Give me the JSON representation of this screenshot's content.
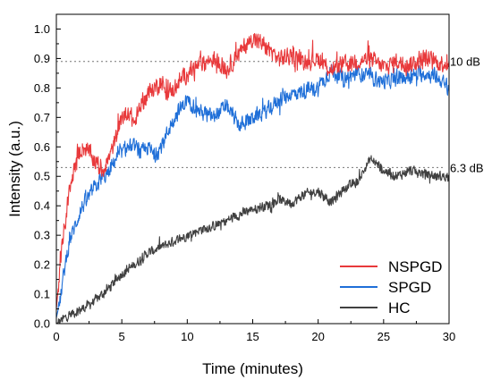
{
  "chart_data": {
    "type": "line",
    "title": "",
    "xlabel": "Time (minutes)",
    "ylabel": "Intensity (a.u.)",
    "xlim": [
      0,
      30
    ],
    "ylim": [
      0,
      1.05
    ],
    "x_ticks": [
      "0",
      "5",
      "10",
      "15",
      "20",
      "25",
      "30"
    ],
    "y_ticks": [
      "0.0",
      "0.1",
      "0.2",
      "0.3",
      "0.4",
      "0.5",
      "0.6",
      "0.7",
      "0.8",
      "0.9",
      "1.0"
    ],
    "grid": false,
    "legend_position": "bottom-right",
    "series": [
      {
        "name": "NSPGD",
        "color": "#e8393b",
        "noise": 0.025,
        "x": [
          0,
          0.3,
          0.6,
          1,
          1.5,
          2,
          2.5,
          3,
          3.5,
          4,
          4.5,
          5,
          5.5,
          6,
          6.5,
          7,
          7.5,
          8,
          8.5,
          9,
          10,
          11,
          12,
          13,
          14,
          15,
          16,
          17,
          18,
          19,
          20,
          21,
          22,
          23,
          24,
          25,
          26,
          27,
          28,
          29,
          30
        ],
        "y": [
          0.05,
          0.2,
          0.32,
          0.45,
          0.55,
          0.6,
          0.58,
          0.55,
          0.52,
          0.56,
          0.62,
          0.7,
          0.72,
          0.68,
          0.75,
          0.78,
          0.8,
          0.82,
          0.78,
          0.8,
          0.85,
          0.88,
          0.9,
          0.86,
          0.92,
          0.97,
          0.94,
          0.9,
          0.91,
          0.89,
          0.9,
          0.86,
          0.88,
          0.89,
          0.9,
          0.87,
          0.89,
          0.88,
          0.9,
          0.89,
          0.88
        ]
      },
      {
        "name": "SPGD",
        "color": "#1f6fd8",
        "noise": 0.022,
        "x": [
          0,
          0.3,
          0.6,
          1,
          1.5,
          2,
          2.5,
          3,
          3.5,
          4,
          4.5,
          5,
          5.5,
          6,
          6.5,
          7,
          7.5,
          8,
          8.5,
          9,
          10,
          11,
          12,
          13,
          14,
          15,
          16,
          17,
          18,
          19,
          20,
          21,
          22,
          23,
          24,
          25,
          26,
          27,
          28,
          29,
          30
        ],
        "y": [
          0.02,
          0.08,
          0.18,
          0.28,
          0.34,
          0.4,
          0.43,
          0.47,
          0.49,
          0.51,
          0.56,
          0.58,
          0.6,
          0.6,
          0.58,
          0.6,
          0.57,
          0.6,
          0.65,
          0.7,
          0.76,
          0.72,
          0.7,
          0.74,
          0.67,
          0.7,
          0.72,
          0.76,
          0.78,
          0.79,
          0.8,
          0.86,
          0.83,
          0.85,
          0.84,
          0.82,
          0.83,
          0.84,
          0.85,
          0.84,
          0.8
        ]
      },
      {
        "name": "HC",
        "color": "#404040",
        "noise": 0.014,
        "x": [
          0,
          1,
          2,
          3,
          4,
          5,
          6,
          7,
          8,
          9,
          10,
          11,
          12,
          13,
          14,
          15,
          16,
          17,
          18,
          19,
          20,
          21,
          22,
          23,
          24,
          25,
          26,
          27,
          28,
          29,
          30
        ],
        "y": [
          0.0,
          0.03,
          0.05,
          0.08,
          0.12,
          0.17,
          0.2,
          0.24,
          0.26,
          0.28,
          0.3,
          0.32,
          0.33,
          0.35,
          0.37,
          0.39,
          0.4,
          0.42,
          0.41,
          0.44,
          0.45,
          0.41,
          0.46,
          0.48,
          0.56,
          0.52,
          0.5,
          0.52,
          0.51,
          0.5,
          0.5
        ]
      }
    ],
    "reference_lines": [
      {
        "y": 0.89,
        "label": "10 dB"
      },
      {
        "y": 0.53,
        "label": "6.3 dB"
      }
    ]
  }
}
